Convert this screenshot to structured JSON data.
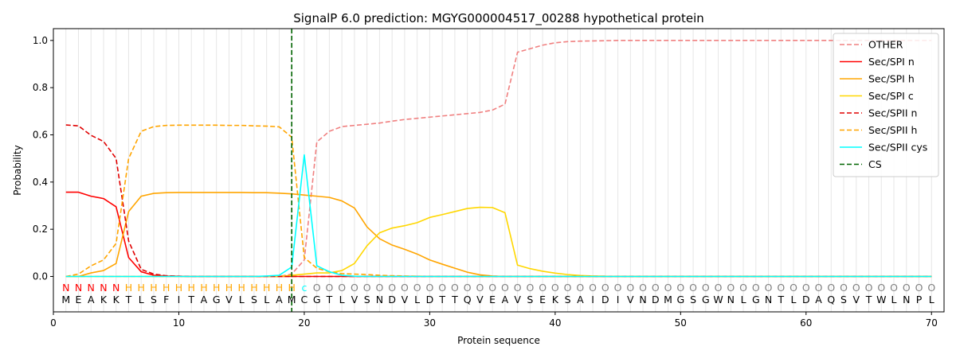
{
  "chart_data": {
    "type": "line",
    "title": "SignalP 6.0 prediction: MGYG000004517_00288 hypothetical protein",
    "xlabel": "Protein sequence",
    "ylabel": "Probability",
    "xlim": [
      0,
      71
    ],
    "ylim": [
      -0.15,
      1.05
    ],
    "xticks": [
      0,
      10,
      20,
      30,
      40,
      50,
      60,
      70
    ],
    "yticks": [
      0.0,
      0.2,
      0.4,
      0.6,
      0.8,
      1.0
    ],
    "grid": "vertical lines at each residue",
    "legend_position": "top-right",
    "sequence": [
      "M",
      "E",
      "A",
      "K",
      "K",
      "T",
      "L",
      "S",
      "F",
      "I",
      "T",
      "A",
      "G",
      "V",
      "L",
      "S",
      "L",
      "A",
      "M",
      "C",
      "G",
      "T",
      "L",
      "V",
      "S",
      "N",
      "D",
      "V",
      "L",
      "D",
      "T",
      "T",
      "Q",
      "V",
      "E",
      "A",
      "V",
      "S",
      "E",
      "K",
      "S",
      "A",
      "I",
      "D",
      "I",
      "V",
      "N",
      "D",
      "M",
      "G",
      "S",
      "G",
      "W",
      "N",
      "L",
      "G",
      "N",
      "T",
      "L",
      "D",
      "A",
      "Q",
      "S",
      "V",
      "T",
      "W",
      "L",
      "N",
      "P",
      "L"
    ],
    "annotation": [
      "N",
      "N",
      "N",
      "N",
      "N",
      "H",
      "H",
      "H",
      "H",
      "H",
      "H",
      "H",
      "H",
      "H",
      "H",
      "H",
      "H",
      "H",
      "H",
      "c",
      "O",
      "O",
      "O",
      "O",
      "O",
      "O",
      "O",
      "O",
      "O",
      "O",
      "O",
      "O",
      "O",
      "O",
      "O",
      "O",
      "O",
      "O",
      "O",
      "O",
      "O",
      "O",
      "O",
      "O",
      "O",
      "O",
      "O",
      "O",
      "O",
      "O",
      "O",
      "O",
      "O",
      "O",
      "O",
      "O",
      "O",
      "O",
      "O",
      "O",
      "O",
      "O",
      "O",
      "O",
      "O",
      "O",
      "O",
      "O",
      "O",
      "O"
    ],
    "annotation_colors": {
      "N": "#ff0000",
      "H": "#ffa500",
      "c": "#00ffff",
      "O": "#808080"
    },
    "cleavage_site": 19,
    "series": [
      {
        "name": "OTHER",
        "color": "#f08080",
        "dash": true,
        "values": [
          0,
          0,
          0,
          0,
          0,
          0,
          0,
          0,
          0,
          0,
          0,
          0,
          0,
          0,
          0,
          0,
          0,
          0,
          0.01,
          0.07,
          0.57,
          0.615,
          0.635,
          0.64,
          0.645,
          0.65,
          0.658,
          0.665,
          0.67,
          0.675,
          0.68,
          0.685,
          0.69,
          0.695,
          0.705,
          0.73,
          0.95,
          0.965,
          0.98,
          0.99,
          0.995,
          0.997,
          0.998,
          0.999,
          1,
          1,
          1,
          1,
          1,
          1,
          1,
          1,
          1,
          1,
          1,
          1,
          1,
          1,
          1,
          1,
          1,
          1,
          1,
          1,
          1,
          1,
          1,
          1,
          1,
          1
        ]
      },
      {
        "name": "Sec/SPI n",
        "color": "#ff0000",
        "dash": false,
        "values": [
          0.357,
          0.357,
          0.34,
          0.33,
          0.295,
          0.08,
          0.02,
          0.005,
          0.002,
          0.001,
          0,
          0,
          0,
          0,
          0,
          0,
          0,
          0,
          0,
          0,
          0,
          0,
          0,
          0,
          0,
          0,
          0,
          0,
          0,
          0,
          0,
          0,
          0,
          0,
          0,
          0,
          0,
          0,
          0,
          0,
          0,
          0,
          0,
          0,
          0,
          0,
          0,
          0,
          0,
          0,
          0,
          0,
          0,
          0,
          0,
          0,
          0,
          0,
          0,
          0,
          0,
          0,
          0,
          0,
          0,
          0,
          0,
          0,
          0,
          0
        ]
      },
      {
        "name": "Sec/SPI h",
        "color": "#ffa500",
        "dash": false,
        "values": [
          0,
          0,
          0.015,
          0.025,
          0.055,
          0.275,
          0.34,
          0.352,
          0.355,
          0.356,
          0.356,
          0.356,
          0.356,
          0.356,
          0.356,
          0.355,
          0.355,
          0.353,
          0.35,
          0.345,
          0.34,
          0.335,
          0.32,
          0.29,
          0.21,
          0.16,
          0.133,
          0.115,
          0.095,
          0.07,
          0.052,
          0.035,
          0.018,
          0.007,
          0.002,
          0,
          0,
          0,
          0,
          0,
          0,
          0,
          0,
          0,
          0,
          0,
          0,
          0,
          0,
          0,
          0,
          0,
          0,
          0,
          0,
          0,
          0,
          0,
          0,
          0,
          0,
          0,
          0,
          0,
          0,
          0,
          0,
          0,
          0,
          0
        ]
      },
      {
        "name": "Sec/SPI c",
        "color": "#ffd700",
        "dash": false,
        "values": [
          0,
          0,
          0,
          0,
          0,
          0,
          0,
          0,
          0,
          0,
          0,
          0,
          0,
          0,
          0,
          0,
          0,
          0,
          0.005,
          0.01,
          0.015,
          0.015,
          0.025,
          0.055,
          0.13,
          0.185,
          0.205,
          0.215,
          0.228,
          0.25,
          0.262,
          0.275,
          0.288,
          0.293,
          0.292,
          0.27,
          0.048,
          0.033,
          0.022,
          0.014,
          0.008,
          0.004,
          0.002,
          0.001,
          0,
          0,
          0,
          0,
          0,
          0,
          0,
          0,
          0,
          0,
          0,
          0,
          0,
          0,
          0,
          0,
          0,
          0,
          0,
          0,
          0,
          0,
          0,
          0,
          0,
          0
        ]
      },
      {
        "name": "Sec/SPII n",
        "color": "#e00000",
        "dash": true,
        "values": [
          0.642,
          0.638,
          0.598,
          0.572,
          0.5,
          0.15,
          0.03,
          0.01,
          0.003,
          0.001,
          0,
          0,
          0,
          0,
          0,
          0,
          0,
          0,
          0,
          0,
          0,
          0,
          0,
          0,
          0,
          0,
          0,
          0,
          0,
          0,
          0,
          0,
          0,
          0,
          0,
          0,
          0,
          0,
          0,
          0,
          0,
          0,
          0,
          0,
          0,
          0,
          0,
          0,
          0,
          0,
          0,
          0,
          0,
          0,
          0,
          0,
          0,
          0,
          0,
          0,
          0,
          0,
          0,
          0,
          0,
          0,
          0,
          0,
          0,
          0
        ]
      },
      {
        "name": "Sec/SPII h",
        "color": "#ffa500",
        "dash": true,
        "values": [
          0,
          0.01,
          0.045,
          0.07,
          0.14,
          0.5,
          0.615,
          0.635,
          0.64,
          0.641,
          0.641,
          0.641,
          0.641,
          0.64,
          0.64,
          0.638,
          0.637,
          0.634,
          0.59,
          0.08,
          0.035,
          0.02,
          0.012,
          0.01,
          0.008,
          0.005,
          0.003,
          0.002,
          0.001,
          0,
          0,
          0,
          0,
          0,
          0,
          0,
          0,
          0,
          0,
          0,
          0,
          0,
          0,
          0,
          0,
          0,
          0,
          0,
          0,
          0,
          0,
          0,
          0,
          0,
          0,
          0,
          0,
          0,
          0,
          0,
          0,
          0,
          0,
          0,
          0,
          0,
          0,
          0,
          0,
          0
        ]
      },
      {
        "name": "Sec/SPII cys",
        "color": "#00ffff",
        "dash": false,
        "values": [
          0,
          0,
          0,
          0,
          0,
          0,
          0,
          0,
          0,
          0,
          0,
          0,
          0,
          0,
          0,
          0,
          0.002,
          0.005,
          0.04,
          0.515,
          0.045,
          0.02,
          0.005,
          0.001,
          0,
          0,
          0,
          0,
          0,
          0,
          0,
          0,
          0,
          0,
          0,
          0,
          0,
          0,
          0,
          0,
          0,
          0,
          0,
          0,
          0,
          0,
          0,
          0,
          0,
          0,
          0,
          0,
          0,
          0,
          0,
          0,
          0,
          0,
          0,
          0,
          0,
          0,
          0,
          0,
          0,
          0,
          0,
          0,
          0,
          0
        ]
      },
      {
        "name": "CS",
        "color": "#006400",
        "dash": true,
        "values": []
      }
    ]
  }
}
